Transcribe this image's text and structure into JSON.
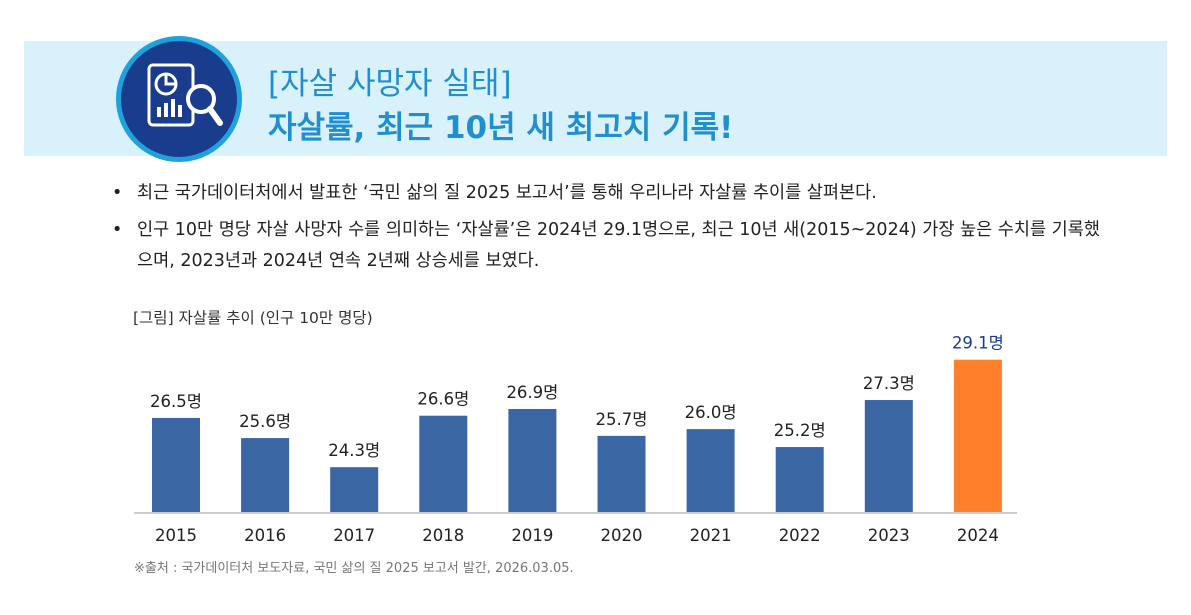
{
  "header": {
    "title_line1": "[자살 사망자 실태]",
    "title_line2": "자살률, 최근 10년 새 최고치 기록!",
    "icon": "report-search-icon"
  },
  "bullets": [
    "최근 국가데이터처에서 발표한 ‘국민 삶의 질 2025 보고서’를 통해 우리나라 자살률 추이를 살펴본다.",
    "인구 10만 명당 자살 사망자 수를 의미하는 ‘자살률’은 2024년 29.1명으로, 최근 10년 새(2015~2024) 가장 높은 수치를 기록했으며, 2023년과 2024년 연속 2년째 상승세를 보였다."
  ],
  "bullet_symbol": "•",
  "chart_caption": "[그림] 자살률 추이 (인구 10만 명당)",
  "chart_data": {
    "type": "bar",
    "title": "[그림] 자살률 추이 (인구 10만 명당)",
    "categories": [
      "2015",
      "2016",
      "2017",
      "2018",
      "2019",
      "2020",
      "2021",
      "2022",
      "2023",
      "2024"
    ],
    "values": [
      26.5,
      25.6,
      24.3,
      26.6,
      26.9,
      25.7,
      26.0,
      25.2,
      27.3,
      29.1
    ],
    "labels": [
      "26.5명",
      "25.6명",
      "24.3명",
      "26.6명",
      "26.9명",
      "25.7명",
      "26.0명",
      "25.2명",
      "27.3명",
      "29.1명"
    ],
    "unit": "명",
    "xlabel": "",
    "ylabel": "",
    "ylim": [
      22.3,
      29.4
    ],
    "grid": false,
    "colors": {
      "default": "#3a66a4",
      "highlight": "#ff7f2a",
      "highlight_label": "#1a3c8c"
    },
    "highlight_index": 9
  },
  "source": "※출처 : 국가데이터처 보도자료, 국민 삶의 질 2025 보고서 발간, 2026.03.05."
}
